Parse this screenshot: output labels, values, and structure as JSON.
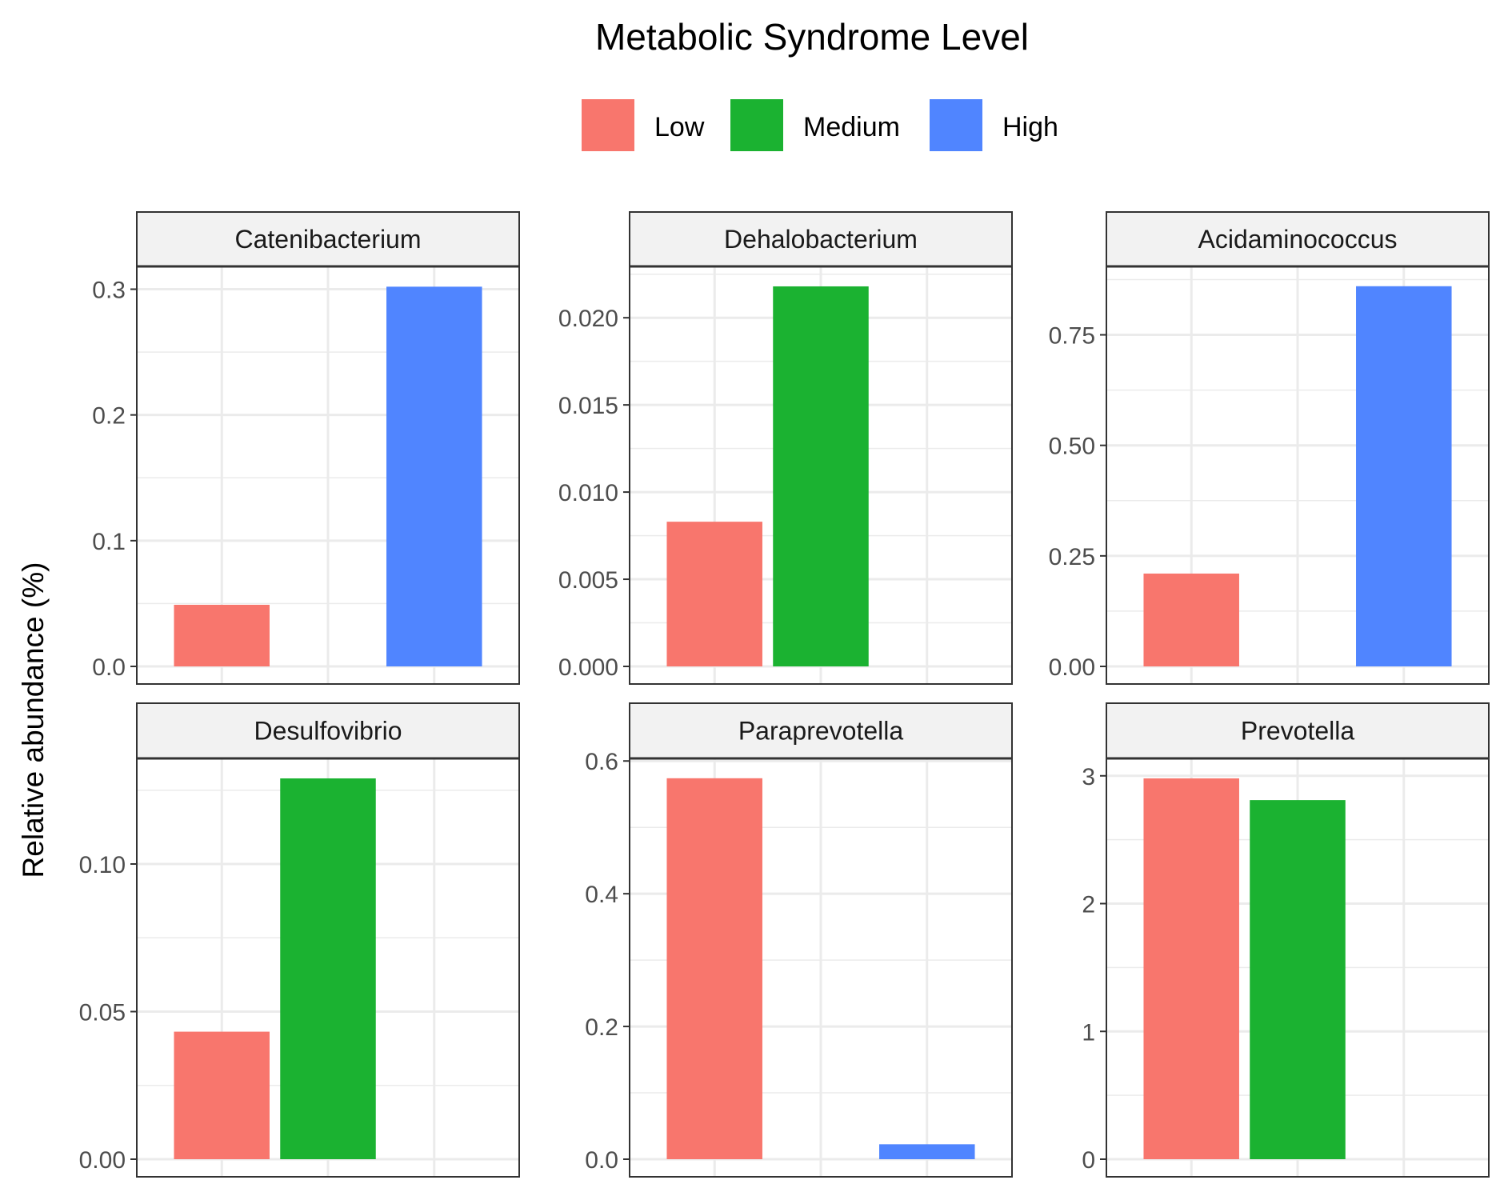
{
  "legend": {
    "title": "Metabolic Syndrome Level",
    "items": [
      {
        "label": "Low",
        "color": "#F8766D"
      },
      {
        "label": "Medium",
        "color": "#1BB231"
      },
      {
        "label": "High",
        "color": "#5085FF"
      }
    ]
  },
  "ylabel": "Relative abundance (%)",
  "chart_data": [
    {
      "type": "bar",
      "title": "Catenibacterium",
      "categories": [
        "Low",
        "Medium",
        "High"
      ],
      "values": [
        0.049,
        0,
        0.302
      ],
      "ylim": [
        0,
        0.3175
      ],
      "yticks": [
        0,
        0.1,
        0.2,
        0.3
      ],
      "yticklabels": [
        "0.0",
        "0.1",
        "0.2",
        "0.3"
      ]
    },
    {
      "type": "bar",
      "title": "Dehalobacterium",
      "categories": [
        "Low",
        "Medium",
        "High"
      ],
      "values": [
        0.0083,
        0.0218,
        0
      ],
      "ylim": [
        0,
        0.0229
      ],
      "yticks": [
        0,
        0.005,
        0.01,
        0.015,
        0.02
      ],
      "yticklabels": [
        "0.000",
        "0.005",
        "0.010",
        "0.015",
        "0.020"
      ]
    },
    {
      "type": "bar",
      "title": "Acidaminococcus",
      "categories": [
        "Low",
        "Medium",
        "High"
      ],
      "values": [
        0.21,
        0,
        0.86
      ],
      "ylim": [
        0,
        0.903
      ],
      "yticks": [
        0,
        0.25,
        0.5,
        0.75
      ],
      "yticklabels": [
        "0.00",
        "0.25",
        "0.50",
        "0.75"
      ]
    },
    {
      "type": "bar",
      "title": "Desulfovibrio",
      "categories": [
        "Low",
        "Medium",
        "High"
      ],
      "values": [
        0.0432,
        0.129,
        0
      ],
      "ylim": [
        0,
        0.1355
      ],
      "yticks": [
        0,
        0.05,
        0.1
      ],
      "yticklabels": [
        "0.00",
        "0.05",
        "0.10"
      ]
    },
    {
      "type": "bar",
      "title": "Paraprevotella",
      "categories": [
        "Low",
        "Medium",
        "High"
      ],
      "values": [
        0.574,
        0,
        0.0225
      ],
      "ylim": [
        0,
        0.6027
      ],
      "yticks": [
        0,
        0.2,
        0.4,
        0.6
      ],
      "yticklabels": [
        "0.0",
        "0.2",
        "0.4",
        "0.6"
      ]
    },
    {
      "type": "bar",
      "title": "Prevotella",
      "categories": [
        "Low",
        "Medium",
        "High"
      ],
      "values": [
        2.98,
        2.81,
        0
      ],
      "ylim": [
        0,
        3.13
      ],
      "yticks": [
        0,
        1,
        2,
        3
      ],
      "yticklabels": [
        "0",
        "1",
        "2",
        "3"
      ]
    }
  ]
}
